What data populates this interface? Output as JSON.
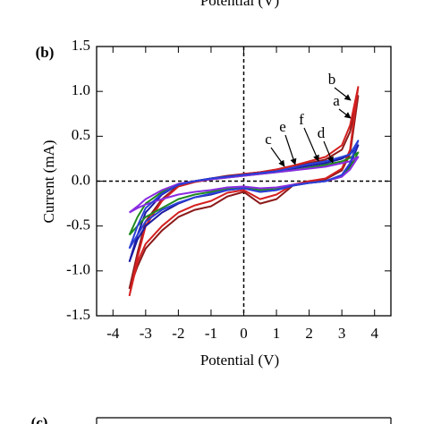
{
  "fragments": {
    "top_axis_label": "Potential (V)",
    "next_panel_label": "(c)"
  },
  "chart_data": {
    "type": "line",
    "panel_label": "(b)",
    "x_label": "Potential (V)",
    "y_label": "Current (mA)",
    "xlim": [
      -4.5,
      4.5
    ],
    "ylim": [
      -1.5,
      1.5
    ],
    "xticks": [
      -4,
      -3,
      -2,
      -1,
      0,
      1,
      2,
      3,
      4
    ],
    "yticks": [
      1.5,
      {
        "value": 1,
        "label": "1.0"
      },
      0.5,
      {
        "value": 0,
        "label": "0.0"
      },
      -0.5,
      {
        "value": -1,
        "label": "-1.0"
      },
      -1.5
    ],
    "zero_lines": true,
    "x": [
      -3.5,
      -3.25,
      -3,
      -2.5,
      -2,
      -1.5,
      -1,
      -0.5,
      0,
      0.5,
      1,
      1.5,
      2,
      2.5,
      3,
      3.25,
      3.5,
      3.25,
      3,
      2.5,
      2,
      1.5,
      1,
      0.5,
      0,
      -0.5,
      -1,
      -1.5,
      -2,
      -2.5,
      -3,
      -3.25,
      -3.5
    ],
    "series": [
      {
        "name": "a",
        "color": "#8b1a1a",
        "values": [
          -1.2,
          -0.8,
          -0.45,
          -0.2,
          -0.05,
          0.0,
          0.03,
          0.06,
          0.08,
          0.1,
          0.13,
          0.17,
          0.2,
          0.24,
          0.35,
          0.55,
          0.95,
          0.3,
          0.12,
          0.02,
          0.0,
          -0.05,
          -0.2,
          -0.25,
          -0.12,
          -0.17,
          -0.28,
          -0.32,
          -0.4,
          -0.55,
          -0.75,
          -0.95,
          -1.2
        ]
      },
      {
        "name": "b",
        "color": "#d42020",
        "values": [
          -1.28,
          -0.85,
          -0.5,
          -0.22,
          -0.06,
          -0.01,
          0.02,
          0.05,
          0.08,
          0.1,
          0.13,
          0.17,
          0.22,
          0.27,
          0.4,
          0.62,
          1.05,
          0.35,
          0.14,
          0.03,
          0.0,
          -0.04,
          -0.15,
          -0.2,
          -0.1,
          -0.13,
          -0.22,
          -0.27,
          -0.35,
          -0.5,
          -0.7,
          -0.9,
          -1.28
        ]
      },
      {
        "name": "c",
        "color": "#1a1aa0",
        "values": [
          -0.9,
          -0.6,
          -0.35,
          -0.15,
          -0.04,
          0.0,
          0.03,
          0.05,
          0.07,
          0.09,
          0.11,
          0.14,
          0.17,
          0.2,
          0.25,
          0.3,
          0.4,
          0.18,
          0.06,
          0.0,
          -0.02,
          -0.05,
          -0.1,
          -0.12,
          -0.08,
          -0.1,
          -0.15,
          -0.18,
          -0.25,
          -0.35,
          -0.5,
          -0.65,
          -0.9
        ]
      },
      {
        "name": "d",
        "color": "#1f8a1f",
        "values": [
          -0.6,
          -0.4,
          -0.25,
          -0.12,
          -0.03,
          0.0,
          0.02,
          0.04,
          0.06,
          0.08,
          0.1,
          0.12,
          0.15,
          0.18,
          0.22,
          0.26,
          0.32,
          0.15,
          0.05,
          0.0,
          -0.02,
          -0.04,
          -0.08,
          -0.1,
          -0.07,
          -0.08,
          -0.12,
          -0.15,
          -0.2,
          -0.3,
          -0.4,
          -0.5,
          -0.6
        ]
      },
      {
        "name": "e",
        "color": "#8a2be2",
        "values": [
          -0.35,
          -0.28,
          -0.2,
          -0.1,
          -0.03,
          0.0,
          0.02,
          0.04,
          0.06,
          0.08,
          0.1,
          0.12,
          0.14,
          0.16,
          0.2,
          0.22,
          0.27,
          0.13,
          0.05,
          0.0,
          -0.02,
          -0.04,
          -0.07,
          -0.08,
          -0.06,
          -0.07,
          -0.1,
          -0.12,
          -0.15,
          -0.2,
          -0.26,
          -0.3,
          -0.35
        ]
      },
      {
        "name": "f",
        "color": "#2a3fd6",
        "values": [
          -0.75,
          -0.5,
          -0.3,
          -0.14,
          -0.04,
          0.0,
          0.03,
          0.05,
          0.07,
          0.09,
          0.11,
          0.15,
          0.19,
          0.22,
          0.27,
          0.3,
          0.45,
          0.2,
          0.07,
          0.0,
          -0.02,
          -0.05,
          -0.1,
          -0.12,
          -0.08,
          -0.1,
          -0.14,
          -0.18,
          -0.24,
          -0.32,
          -0.45,
          -0.6,
          -0.75
        ]
      }
    ]
  }
}
